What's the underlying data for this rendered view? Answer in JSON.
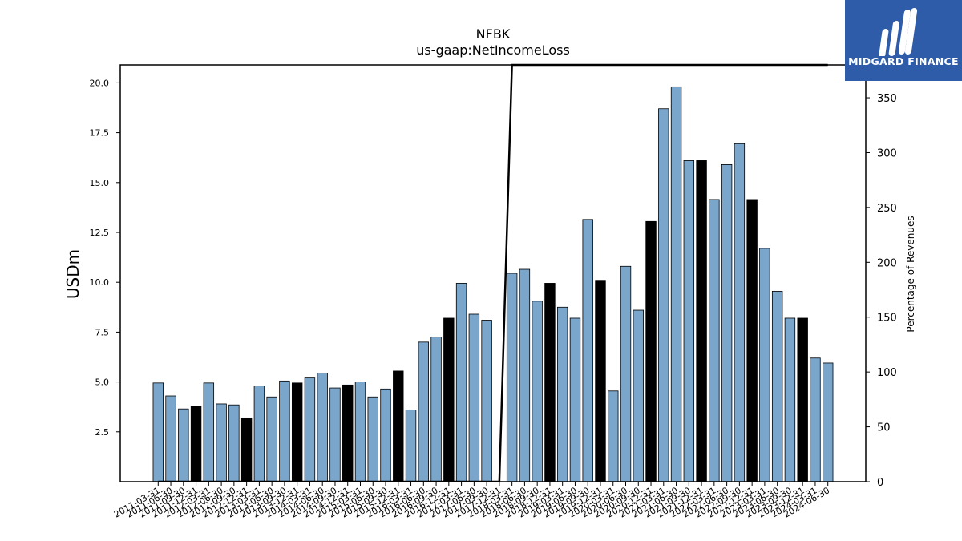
{
  "chart_data": {
    "type": "bar",
    "title": "NFBK",
    "subtitle": "us-gaap:NetIncomeLoss",
    "ylabel": "USDm",
    "y2label": "Percentage of Revenues",
    "ylim": [
      0,
      20.9
    ],
    "y2lim": [
      0,
      380
    ],
    "yticks": [
      "2.5",
      "5.0",
      "7.5",
      "10.0",
      "12.5",
      "15.0",
      "17.5",
      "20.0"
    ],
    "y2ticks": [
      "0",
      "50",
      "100",
      "150",
      "200",
      "250",
      "300",
      "350"
    ],
    "bar_colors": {
      "regular": "#7aa6cc",
      "q4": "#000000"
    },
    "categories": [
      "2011-03-31",
      "2011-06-30",
      "2011-09-30",
      "2011-12-31",
      "2012-03-31",
      "2012-06-30",
      "2012-09-30",
      "2012-12-31",
      "2013-03-31",
      "2013-06-30",
      "2013-09-30",
      "2013-12-31",
      "2014-03-31",
      "2014-06-30",
      "2014-09-30",
      "2014-12-31",
      "2015-03-31",
      "2015-06-30",
      "2015-09-30",
      "2015-12-31",
      "2016-03-31",
      "2016-06-30",
      "2016-09-30",
      "2016-12-31",
      "2017-03-31",
      "2017-06-30",
      "2017-09-30",
      "2017-12-31",
      "2018-03-31",
      "2018-06-30",
      "2018-09-30",
      "2018-12-31",
      "2019-03-31",
      "2019-06-30",
      "2019-09-30",
      "2019-12-31",
      "2020-03-31",
      "2020-06-30",
      "2020-09-30",
      "2020-12-31",
      "2021-03-31",
      "2021-06-30",
      "2021-09-30",
      "2021-12-31",
      "2022-03-31",
      "2022-06-30",
      "2022-09-30",
      "2022-12-31",
      "2023-03-31",
      "2023-06-30",
      "2023-09-30",
      "2023-12-31",
      "2024-03-31",
      "2024-06-30"
    ],
    "values": [
      4.95,
      4.3,
      3.65,
      3.8,
      4.95,
      3.9,
      3.85,
      3.2,
      4.8,
      4.25,
      5.05,
      4.95,
      5.2,
      5.45,
      4.7,
      4.85,
      5.0,
      4.25,
      4.65,
      5.55,
      3.6,
      7.0,
      7.25,
      8.2,
      9.95,
      8.4,
      8.1,
      null,
      10.45,
      10.65,
      9.05,
      9.95,
      8.75,
      8.2,
      13.15,
      10.1,
      4.55,
      10.8,
      8.6,
      13.05,
      18.7,
      19.8,
      16.1,
      16.1,
      14.15,
      15.9,
      16.95,
      14.15,
      11.7,
      9.55,
      8.2,
      8.2,
      6.2,
      5.95
    ],
    "q4_flags": [
      false,
      false,
      false,
      true,
      false,
      false,
      false,
      true,
      false,
      false,
      false,
      true,
      false,
      false,
      false,
      true,
      false,
      false,
      false,
      true,
      false,
      false,
      false,
      true,
      false,
      false,
      false,
      true,
      false,
      false,
      false,
      true,
      false,
      false,
      false,
      true,
      false,
      false,
      false,
      true,
      false,
      false,
      false,
      true,
      false,
      false,
      false,
      true,
      false,
      false,
      false,
      true,
      false,
      false
    ],
    "percent_of_revenues": [
      0,
      0,
      0,
      0,
      0,
      0,
      0,
      0,
      0,
      0,
      0,
      0,
      0,
      0,
      0,
      0,
      0,
      0,
      0,
      0,
      0,
      0,
      0,
      0,
      0,
      0,
      0,
      0,
      380,
      380,
      380,
      380,
      380,
      380,
      380,
      380,
      380,
      380,
      380,
      380,
      380,
      380,
      380,
      380,
      380,
      380,
      380,
      380,
      380,
      380,
      380,
      380,
      380,
      380
    ],
    "grid": false,
    "legend": "none"
  },
  "logo": {
    "name": "MIDGARD FINANCE"
  }
}
